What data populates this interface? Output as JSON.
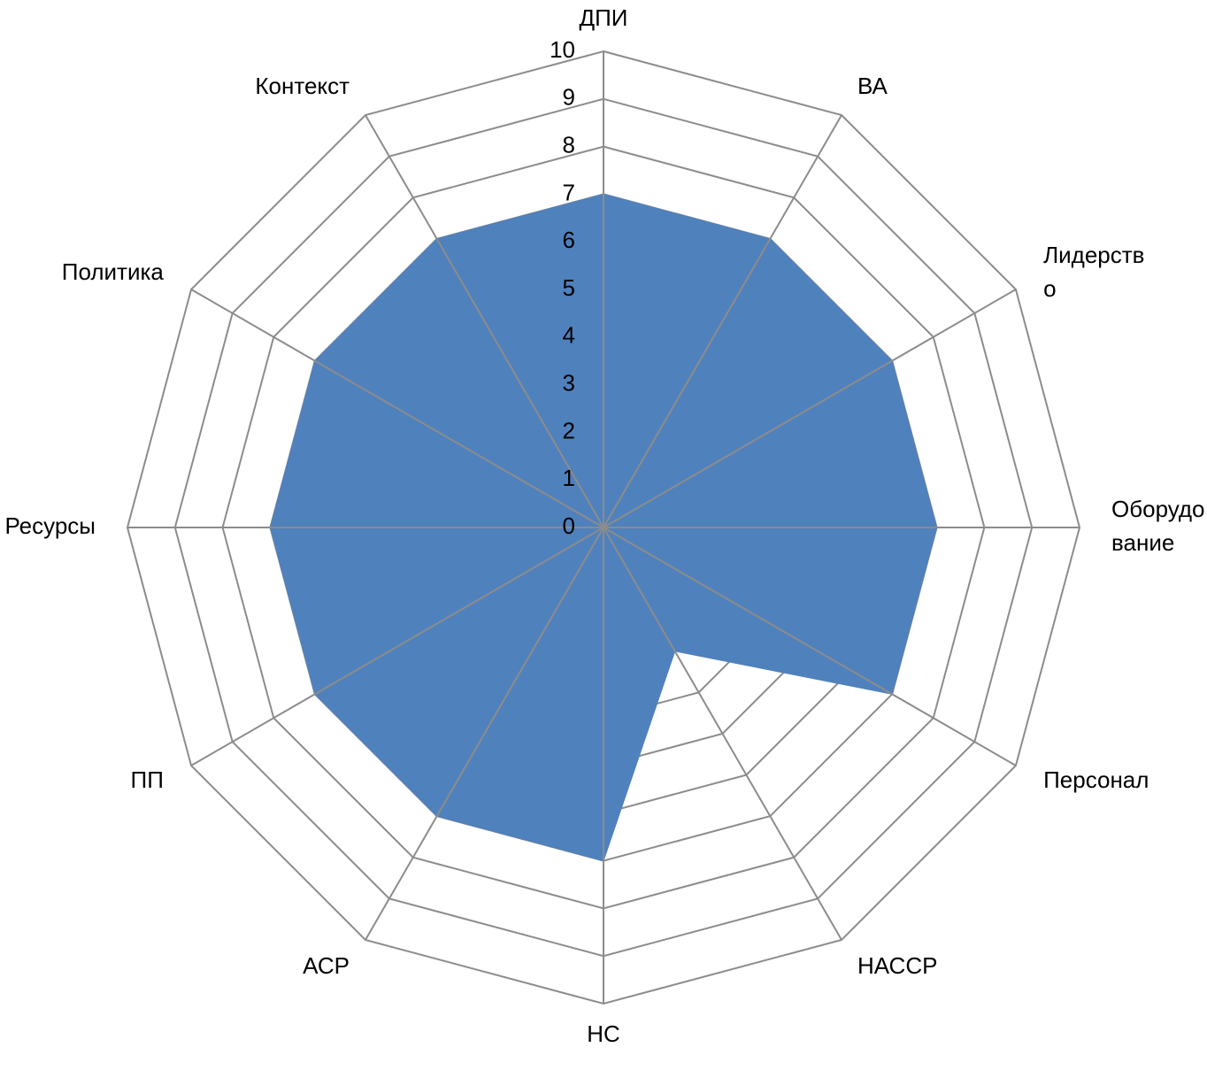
{
  "chart_data": {
    "type": "radar",
    "categories": [
      [
        "ДПИ"
      ],
      [
        "ВА"
      ],
      [
        "Лидерств",
        "о"
      ],
      [
        "Оборудо",
        "вание"
      ],
      [
        "Персонал"
      ],
      [
        "НАССР"
      ],
      [
        "НС"
      ],
      [
        "АСР"
      ],
      [
        "ПП"
      ],
      [
        "Ресурсы"
      ],
      [
        "Политика"
      ],
      [
        "Контекст"
      ]
    ],
    "series": [
      {
        "values": [
          7,
          7,
          7,
          7,
          7,
          3,
          7,
          7,
          7,
          7,
          7,
          7
        ],
        "color": "#4f81bd"
      }
    ],
    "rlim": [
      0,
      10
    ],
    "ticks": [
      "0",
      "1",
      "2",
      "3",
      "4",
      "5",
      "6",
      "7",
      "8",
      "9",
      "10"
    ],
    "grid": true,
    "grid_color": "#8c8c8c",
    "legend": "none"
  }
}
